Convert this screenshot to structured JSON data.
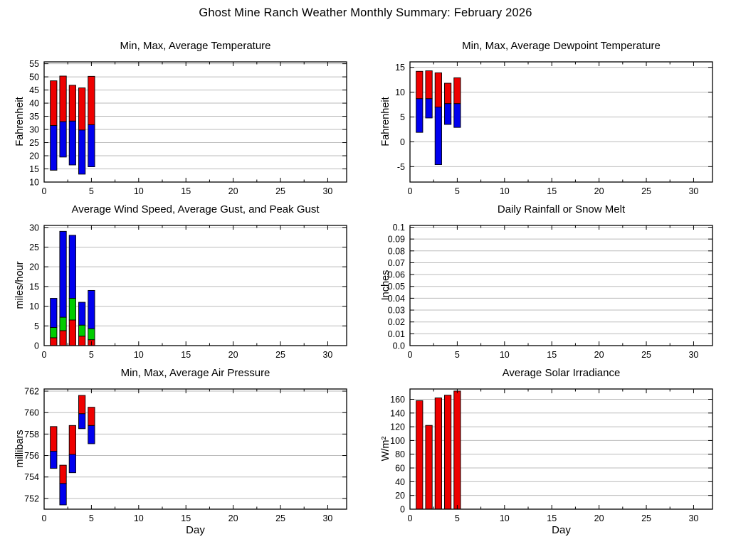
{
  "page": {
    "title": "Ghost Mine Ranch Weather Monthly Summary: February 2026"
  },
  "chart_data": [
    {
      "id": "temperature",
      "type": "bar",
      "style": "range",
      "title": "Min, Max, Average Temperature",
      "ylabel": "Fahrenheit",
      "xlabel": "",
      "xlim": [
        0,
        32
      ],
      "ylim": [
        10,
        55.7
      ],
      "xticks": [
        0,
        5,
        10,
        15,
        20,
        25,
        30
      ],
      "x_minor_step": 2.5,
      "yticks": [
        "10",
        "15",
        "20",
        "25",
        "30",
        "35",
        "40",
        "45",
        "50",
        "55"
      ],
      "grid": "horizontal",
      "legend": "none",
      "days": [
        1,
        2,
        3,
        4,
        5
      ],
      "series": [
        {
          "name": "Min",
          "values": [
            14.5,
            19.5,
            16.5,
            13.0,
            15.8
          ]
        },
        {
          "name": "Average",
          "values": [
            31.5,
            33.0,
            33.2,
            29.8,
            31.8
          ]
        },
        {
          "name": "Max",
          "values": [
            48.5,
            50.3,
            46.8,
            45.8,
            50.2
          ]
        }
      ],
      "segment_colors": [
        "#0000ee",
        "#ee0000"
      ],
      "bar_width": 0.7
    },
    {
      "id": "dewpoint",
      "type": "bar",
      "style": "range",
      "title": "Min, Max, Average Dewpoint Temperature",
      "ylabel": "Fahrenheit",
      "xlabel": "",
      "xlim": [
        0,
        32
      ],
      "ylim": [
        -8.1,
        16.1
      ],
      "xticks": [
        0,
        5,
        10,
        15,
        20,
        25,
        30
      ],
      "x_minor_step": 2.5,
      "yticks": [
        "-5",
        "0",
        "5",
        "10",
        "15"
      ],
      "grid": "horizontal",
      "legend": "none",
      "days": [
        1,
        2,
        3,
        4,
        5
      ],
      "series": [
        {
          "name": "Min",
          "values": [
            1.9,
            4.8,
            -4.6,
            3.5,
            2.9
          ]
        },
        {
          "name": "Average",
          "values": [
            8.7,
            8.7,
            7.0,
            7.7,
            7.7
          ]
        },
        {
          "name": "Max",
          "values": [
            14.2,
            14.3,
            13.9,
            11.8,
            12.9
          ]
        }
      ],
      "segment_colors": [
        "#0000ee",
        "#ee0000"
      ],
      "bar_width": 0.7
    },
    {
      "id": "wind",
      "type": "bar",
      "style": "stacked",
      "title": "Average Wind Speed, Average Gust, and Peak Gust",
      "ylabel": "miles/hour",
      "xlabel": "",
      "xlim": [
        0,
        32
      ],
      "ylim": [
        0,
        30.5
      ],
      "xticks": [
        0,
        5,
        10,
        15,
        20,
        25,
        30
      ],
      "x_minor_step": 2.5,
      "yticks": [
        "0",
        "5",
        "10",
        "15",
        "20",
        "25",
        "30"
      ],
      "grid": "horizontal",
      "legend": "none",
      "days": [
        1,
        2,
        3,
        4,
        5
      ],
      "series": [
        {
          "name": "Average Wind Speed",
          "values": [
            2.0,
            3.8,
            6.5,
            2.4,
            1.5
          ]
        },
        {
          "name": "Average Gust",
          "values": [
            4.6,
            7.2,
            12.0,
            5.2,
            4.3
          ]
        },
        {
          "name": "Peak Gust",
          "values": [
            12.0,
            29.0,
            28.0,
            11.0,
            14.0
          ]
        }
      ],
      "segment_colors": [
        "#ee0000",
        "#00cc00",
        "#0000ee"
      ],
      "bar_width": 0.7
    },
    {
      "id": "rainfall",
      "type": "bar",
      "style": "column",
      "title": "Daily Rainfall or Snow Melt",
      "ylabel": "Inches",
      "xlabel": "",
      "xlim": [
        0,
        32
      ],
      "ylim": [
        0,
        0.1015
      ],
      "xticks": [
        0,
        5,
        10,
        15,
        20,
        25,
        30
      ],
      "x_minor_step": 2.5,
      "yticks": [
        "0.0",
        "0.01",
        "0.02",
        "0.03",
        "0.04",
        "0.05",
        "0.06",
        "0.07",
        "0.08",
        "0.09",
        "0.1"
      ],
      "grid": "horizontal",
      "legend": "none",
      "days": [],
      "series": [
        {
          "name": "Rainfall",
          "values": []
        }
      ],
      "segment_colors": [
        "#ee0000"
      ],
      "bar_width": 0.7
    },
    {
      "id": "pressure",
      "type": "bar",
      "style": "range",
      "title": "Min, Max, Average Air Pressure",
      "ylabel": "millibars",
      "xlabel": "Day",
      "xlim": [
        0,
        32
      ],
      "ylim": [
        751,
        762.2
      ],
      "xticks": [
        0,
        5,
        10,
        15,
        20,
        25,
        30
      ],
      "x_minor_step": 2.5,
      "yticks": [
        "752",
        "754",
        "756",
        "758",
        "760",
        "762"
      ],
      "grid": "horizontal",
      "legend": "none",
      "days": [
        1,
        2,
        3,
        4,
        5
      ],
      "series": [
        {
          "name": "Min",
          "values": [
            754.8,
            751.4,
            754.4,
            758.5,
            757.1
          ]
        },
        {
          "name": "Average",
          "values": [
            756.4,
            753.4,
            756.1,
            759.9,
            758.8
          ]
        },
        {
          "name": "Max",
          "values": [
            758.7,
            755.1,
            758.8,
            761.6,
            760.5
          ]
        }
      ],
      "segment_colors": [
        "#0000ee",
        "#ee0000"
      ],
      "bar_width": 0.7
    },
    {
      "id": "solar",
      "type": "bar",
      "style": "column",
      "title": "Average Solar Irradiance",
      "ylabel": "W/m²",
      "xlabel": "Day",
      "xlim": [
        0,
        32
      ],
      "ylim": [
        0,
        175
      ],
      "xticks": [
        0,
        5,
        10,
        15,
        20,
        25,
        30
      ],
      "x_minor_step": 2.5,
      "yticks": [
        "0",
        "20",
        "40",
        "60",
        "80",
        "100",
        "120",
        "140",
        "160"
      ],
      "grid": "horizontal",
      "legend": "none",
      "days": [
        1,
        2,
        3,
        4,
        5
      ],
      "series": [
        {
          "name": "Average Solar Irradiance",
          "values": [
            158,
            122,
            162,
            166,
            172
          ]
        }
      ],
      "segment_colors": [
        "#ee0000"
      ],
      "bar_width": 0.7
    }
  ]
}
